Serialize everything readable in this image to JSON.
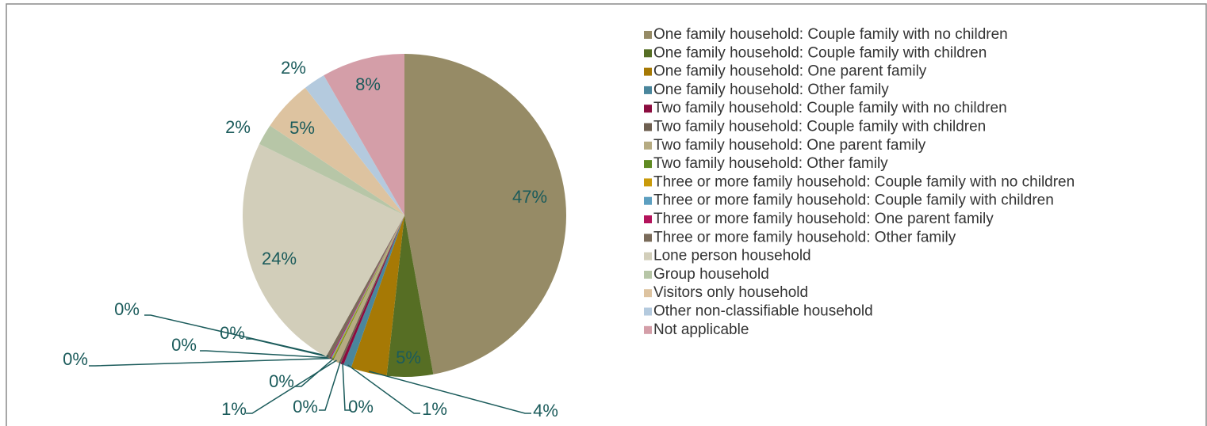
{
  "chart_data": {
    "type": "pie",
    "categories": [
      "One family household: Couple family with no children",
      "One family household: Couple family with children",
      "One family household: One parent family",
      "One family household: Other family",
      "Two family household: Couple family with no children",
      "Two family household: Couple family with children",
      "Two family household: One parent family",
      "Two family household: Other family",
      "Three or more family household: Couple family with no children",
      "Three or more family household: Couple family with children",
      "Three or more family household: One parent family",
      "Three or more family household: Other family",
      "Lone person household",
      "Group household",
      "Visitors only household",
      "Other non-classifiable household",
      "Not applicable"
    ],
    "values": [
      47.1,
      4.6,
      3.6,
      0.8,
      0.3,
      0.2,
      0.6,
      0.1,
      0.1,
      0.1,
      0.1,
      0.4,
      24.2,
      2.1,
      5.1,
      2.2,
      8.3
    ],
    "value_labels": [
      "47%",
      "5%",
      "4%",
      "1%",
      "0%",
      "0%",
      "1%",
      "0%",
      "0%",
      "0%",
      "0%",
      "0%",
      "24%",
      "2%",
      "5%",
      "2%",
      "8%"
    ],
    "colors": [
      "#968b66",
      "#566e24",
      "#a67905",
      "#4a869c",
      "#8b0c3f",
      "#6e5f50",
      "#b6ab82",
      "#5f8a22",
      "#c99a0a",
      "#5d9fc0",
      "#b3135b",
      "#7a6b5a",
      "#d2ceba",
      "#b7c6a7",
      "#ddc3a0",
      "#b4cade",
      "#d49ea8"
    ],
    "legend": "right"
  }
}
